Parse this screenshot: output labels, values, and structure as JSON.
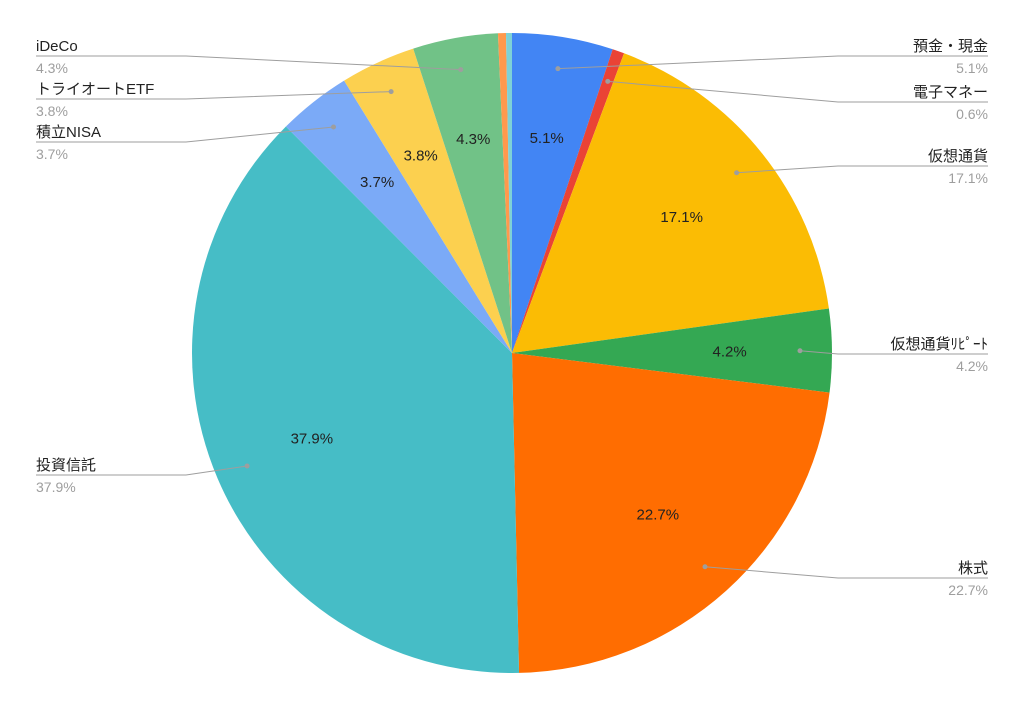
{
  "chart_data": {
    "type": "pie",
    "title": "",
    "start_angle_deg": 0,
    "direction": "clockwise",
    "slices": [
      {
        "name": "預金・現金",
        "value": 5.1,
        "label": "5.1%",
        "color": "#4285f4",
        "side": "right"
      },
      {
        "name": "電子マネー",
        "value": 0.6,
        "label": "0.6%",
        "color": "#ea4335",
        "side": "right"
      },
      {
        "name": "仮想通貨",
        "value": 17.1,
        "label": "17.1%",
        "color": "#fbbc04",
        "side": "right"
      },
      {
        "name": "仮想通貨ﾘﾋﾟｰﾄ",
        "value": 4.2,
        "label": "4.2%",
        "color": "#34a853",
        "side": "right"
      },
      {
        "name": "株式",
        "value": 22.7,
        "label": "22.7%",
        "color": "#ff6d01",
        "side": "right"
      },
      {
        "name": "投資信託",
        "value": 37.9,
        "label": "37.9%",
        "color": "#46bdc6",
        "side": "left"
      },
      {
        "name": "積立NISA",
        "value": 3.7,
        "label": "3.7%",
        "color": "#7baaf7",
        "side": "left"
      },
      {
        "name": "トライオートETF",
        "value": 3.8,
        "label": "3.8%",
        "color": "#fcd04f",
        "side": "left"
      },
      {
        "name": "iDeCo",
        "value": 4.3,
        "label": "4.3%",
        "color": "#71c287",
        "side": "left"
      },
      {
        "name": "",
        "value": 0.4,
        "label": "",
        "color": "#ff994d",
        "side": "none"
      },
      {
        "name": "",
        "value": 0.3,
        "label": "",
        "color": "#7ed1d7",
        "side": "none"
      }
    ],
    "legend_placement": "outside-labels-with-leaders"
  }
}
